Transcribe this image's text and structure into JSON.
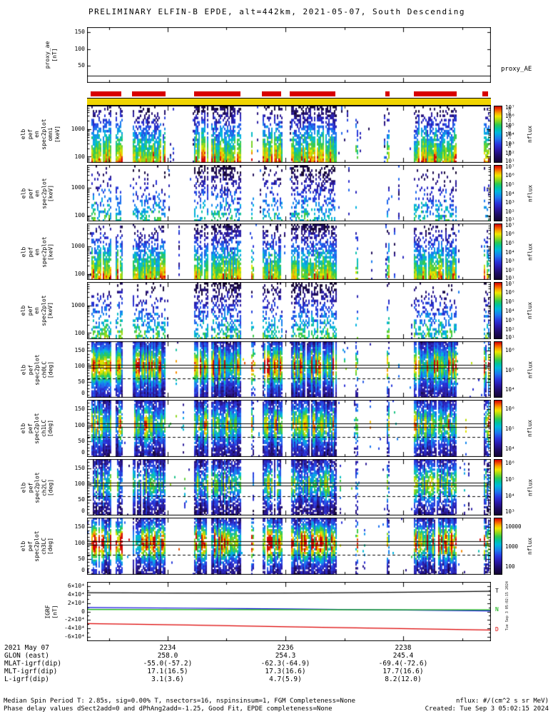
{
  "chart_data": {
    "type": "heatmap",
    "title": "PRELIMINARY ELFIN-B EPDE, alt=442km, 2021-05-07, South Descending",
    "time_axis": {
      "date": "2021 May 07",
      "tick_labels": [
        "2234",
        "2236",
        "2238"
      ],
      "major_frac": [
        0.1996,
        0.491,
        0.783
      ],
      "minor_frac": [
        0.054,
        0.345,
        0.637,
        0.929
      ]
    },
    "proxy_panel": {
      "ylabel_lines": [
        "proxy_ae",
        "[nT]"
      ],
      "right_label": "proxy_AE",
      "y_range_nT": [
        0,
        165
      ],
      "yticks": [
        [
          0.091,
          "150"
        ],
        [
          0.394,
          "100"
        ],
        [
          0.697,
          "50"
        ]
      ],
      "value_nT": 22
    },
    "availability_segments_frac": [
      [
        0.009,
        0.085
      ],
      [
        0.111,
        0.194
      ],
      [
        0.265,
        0.38
      ],
      [
        0.433,
        0.481
      ],
      [
        0.502,
        0.615
      ],
      [
        0.739,
        0.749
      ],
      [
        0.809,
        0.915
      ],
      [
        0.979,
        0.993
      ]
    ],
    "burst_intervals_frac": [
      {
        "x0": 0.009,
        "x1": 0.06,
        "s": 1
      },
      {
        "x0": 0.068,
        "x1": 0.085,
        "s": 1
      },
      {
        "x0": 0.111,
        "x1": 0.194,
        "s": 1
      },
      {
        "x0": 0.265,
        "x1": 0.3,
        "s": 1,
        "hi": 1
      },
      {
        "x0": 0.306,
        "x1": 0.38,
        "s": 1,
        "hi": 1
      },
      {
        "x0": 0.404,
        "x1": 0.41,
        "s": 0.6
      },
      {
        "x0": 0.433,
        "x1": 0.481,
        "s": 1,
        "hi": 0.5
      },
      {
        "x0": 0.502,
        "x1": 0.615,
        "s": 1,
        "hi": 1
      },
      {
        "x0": 0.663,
        "x1": 0.668,
        "s": 0.5
      },
      {
        "x0": 0.739,
        "x1": 0.749,
        "s": 0.7
      },
      {
        "x0": 0.809,
        "x1": 0.915,
        "s": 1
      },
      {
        "x0": 0.979,
        "x1": 0.993,
        "s": 0.8
      }
    ],
    "colorbar_label": "nflux",
    "energy_range_keV": [
      60,
      7000
    ],
    "pitch_range_deg": [
      0,
      180
    ],
    "pitch_overlay_lines": {
      "solid_deg": [
        105,
        95
      ],
      "dashed_deg": [
        62
      ]
    },
    "spec_panels": [
      {
        "id": "en-omni",
        "label_lines": [
          "elb",
          "pef",
          "en",
          "spec2plot",
          "omni",
          "[keV]"
        ],
        "kind": "energy",
        "yticks": [
          [
            0.411,
            "1000"
          ],
          [
            0.894,
            "100"
          ]
        ],
        "cb_ticks": [
          [
            0.02,
            "10⁷"
          ],
          [
            0.18,
            "10⁶"
          ],
          [
            0.34,
            "10⁵"
          ],
          [
            0.5,
            "10⁴"
          ],
          [
            0.66,
            "10³"
          ],
          [
            0.82,
            "10²"
          ],
          [
            0.96,
            "10¹"
          ]
        ],
        "bottom_level": 6.3,
        "top_level": 0.6,
        "density": 1.0,
        "hi_scale": 1.0
      },
      {
        "id": "en-1",
        "label_lines": [
          "elb",
          "pef",
          "en",
          "spec2plot",
          "[keV]"
        ],
        "kind": "energy",
        "yticks": [
          [
            0.411,
            "1000"
          ],
          [
            0.894,
            "100"
          ]
        ],
        "cb_ticks": [
          [
            0.02,
            "10⁷"
          ],
          [
            0.18,
            "10⁶"
          ],
          [
            0.34,
            "10⁵"
          ],
          [
            0.5,
            "10⁴"
          ],
          [
            0.66,
            "10³"
          ],
          [
            0.82,
            "10²"
          ],
          [
            0.96,
            "10¹"
          ]
        ],
        "bottom_level": 4.3,
        "top_level": 0.4,
        "density": 0.5,
        "hi_scale": 0.8
      },
      {
        "id": "en-2",
        "label_lines": [
          "elb",
          "pef",
          "en",
          "spec2plot",
          "[keV]"
        ],
        "kind": "energy",
        "yticks": [
          [
            0.411,
            "1000"
          ],
          [
            0.894,
            "100"
          ]
        ],
        "cb_ticks": [
          [
            0.02,
            "10⁷"
          ],
          [
            0.18,
            "10⁶"
          ],
          [
            0.34,
            "10⁵"
          ],
          [
            0.5,
            "10⁴"
          ],
          [
            0.66,
            "10³"
          ],
          [
            0.82,
            "10²"
          ],
          [
            0.96,
            "10¹"
          ]
        ],
        "bottom_level": 6.1,
        "top_level": 0.6,
        "density": 1.0,
        "hi_scale": 1.0
      },
      {
        "id": "en-3",
        "label_lines": [
          "elb",
          "pef",
          "en",
          "spec2plot",
          "[keV]"
        ],
        "kind": "energy",
        "yticks": [
          [
            0.411,
            "1000"
          ],
          [
            0.894,
            "100"
          ]
        ],
        "cb_ticks": [
          [
            0.02,
            "10⁷"
          ],
          [
            0.18,
            "10⁶"
          ],
          [
            0.34,
            "10⁵"
          ],
          [
            0.5,
            "10⁴"
          ],
          [
            0.66,
            "10³"
          ],
          [
            0.82,
            "10²"
          ],
          [
            0.96,
            "10¹"
          ]
        ],
        "bottom_level": 4.6,
        "top_level": 0.5,
        "density": 0.6,
        "hi_scale": 0.9
      },
      {
        "id": "ch0LC",
        "label_lines": [
          "elb",
          "pef",
          "spec2plot",
          "ch0LC",
          "[deg]"
        ],
        "kind": "pitch",
        "yticks": [
          [
            0.167,
            "150"
          ],
          [
            0.444,
            "100"
          ],
          [
            0.722,
            "50"
          ],
          [
            1.0,
            "0"
          ]
        ],
        "cb_ticks": [
          [
            0.15,
            "10⁶"
          ],
          [
            0.5,
            "10⁵"
          ],
          [
            0.85,
            "10⁴"
          ]
        ],
        "center_deg": 100,
        "center_level": 5.6,
        "bg_level": 1.6,
        "density": 1.0
      },
      {
        "id": "ch1LC",
        "label_lines": [
          "elb",
          "pef",
          "spec2plot",
          "ch1LC",
          "[deg]"
        ],
        "kind": "pitch",
        "yticks": [
          [
            0.167,
            "150"
          ],
          [
            0.444,
            "100"
          ],
          [
            0.722,
            "50"
          ],
          [
            1.0,
            "0"
          ]
        ],
        "cb_ticks": [
          [
            0.15,
            "10⁶"
          ],
          [
            0.5,
            "10⁵"
          ],
          [
            0.85,
            "10⁴"
          ]
        ],
        "center_deg": 100,
        "center_level": 5.0,
        "bg_level": 1.5,
        "density": 0.95
      },
      {
        "id": "ch2LC",
        "label_lines": [
          "elb",
          "pef",
          "spec2plot",
          "ch2LC",
          "[deg]"
        ],
        "kind": "pitch",
        "yticks": [
          [
            0.167,
            "150"
          ],
          [
            0.444,
            "100"
          ],
          [
            0.722,
            "50"
          ],
          [
            1.0,
            "0"
          ]
        ],
        "cb_ticks": [
          [
            0.06,
            "10⁶"
          ],
          [
            0.35,
            "10⁵"
          ],
          [
            0.64,
            "10⁴"
          ],
          [
            0.92,
            "10³"
          ]
        ],
        "center_deg": 100,
        "center_level": 4.4,
        "bg_level": 1.3,
        "density": 0.85
      },
      {
        "id": "ch3LC",
        "label_lines": [
          "elb",
          "pef",
          "spec2plot",
          "ch3LC",
          "[deg]"
        ],
        "kind": "pitch",
        "yticks": [
          [
            0.167,
            "150"
          ],
          [
            0.444,
            "100"
          ],
          [
            0.722,
            "50"
          ],
          [
            1.0,
            "0"
          ]
        ],
        "cb_ticks": [
          [
            0.15,
            "10000"
          ],
          [
            0.5,
            "1000"
          ],
          [
            0.85,
            "100"
          ]
        ],
        "center_deg": 100,
        "center_level": 6.1,
        "bg_level": 1.4,
        "density": 0.9
      }
    ],
    "igrf_panel": {
      "ylabel_lines": [
        "IGRF",
        "[nT]"
      ],
      "y_range_nT": [
        -70000,
        70000
      ],
      "yticks": [
        [
          0.071,
          "6×10⁴"
        ],
        [
          0.214,
          "4×10⁴"
        ],
        [
          0.357,
          "2×10⁴"
        ],
        [
          0.5,
          "0"
        ],
        [
          0.643,
          "-2×10⁴"
        ],
        [
          0.786,
          "-4×10⁴"
        ],
        [
          0.929,
          "-6×10⁴"
        ]
      ],
      "points_unit": "1e4 nT vs time fraction",
      "series": [
        {
          "name": "T",
          "label": "T",
          "color": "#000000",
          "points": [
            [
              0,
              4.45
            ],
            [
              0.2,
              4.38
            ],
            [
              0.4,
              4.33
            ],
            [
              0.6,
              4.4
            ],
            [
              0.8,
              4.58
            ],
            [
              1,
              4.8
            ]
          ]
        },
        {
          "name": "E",
          "color": "#0000dd",
          "points": [
            [
              0,
              0.95
            ],
            [
              0.25,
              0.8
            ],
            [
              0.5,
              0.6
            ],
            [
              0.75,
              0.38
            ],
            [
              1,
              0.15
            ]
          ]
        },
        {
          "name": "N",
          "label": "N",
          "color": "#00aa00",
          "points": [
            [
              0,
              0.5
            ],
            [
              0.5,
              0.45
            ],
            [
              1,
              0.4
            ]
          ]
        },
        {
          "name": "D",
          "label": "D",
          "color": "#dd0000",
          "points": [
            [
              0,
              -2.85
            ],
            [
              0.25,
              -3.2
            ],
            [
              0.5,
              -3.6
            ],
            [
              0.75,
              -4.0
            ],
            [
              1,
              -4.35
            ]
          ]
        }
      ]
    },
    "annotation_rows": [
      {
        "label": "2021 May 07",
        "values": [
          "2234",
          "2236",
          "2238"
        ]
      },
      {
        "label": "GLON (east)",
        "values": [
          "258.0",
          "254.3",
          "245.4"
        ]
      },
      {
        "label": "MLAT-igrf(dip)",
        "values": [
          "-55.0(-57.2)",
          "-62.3(-64.9)",
          "-69.4(-72.6)"
        ]
      },
      {
        "label": "MLT-igrf(dip)",
        "values": [
          "17.1(16.5)",
          "17.3(16.6)",
          "17.7(16.6)"
        ]
      },
      {
        "label": "L-igrf(dip)",
        "values": [
          "3.1(3.6)",
          "4.7(5.9)",
          "8.2(12.0)"
        ]
      }
    ],
    "colors": {
      "availability_bar": "#d80000",
      "active_bar": "#f0d400"
    }
  },
  "footer": {
    "line1": "Median Spin Period T: 2.85s, sig=0.00% T, nsectors=16, nspinsinsum=1, FGM Completeness=None",
    "line2": "Phase delay values dSect2add=0 and dPhAng2add=-1.25, Good Fit, EPDE completeness=None",
    "nflux_units": "nflux: #/(cm^2 s sr MeV)",
    "created": "Created: Tue Sep  3 05:02:15 2024",
    "side_note": "Tue Sep  3 05:02:15 2024"
  }
}
